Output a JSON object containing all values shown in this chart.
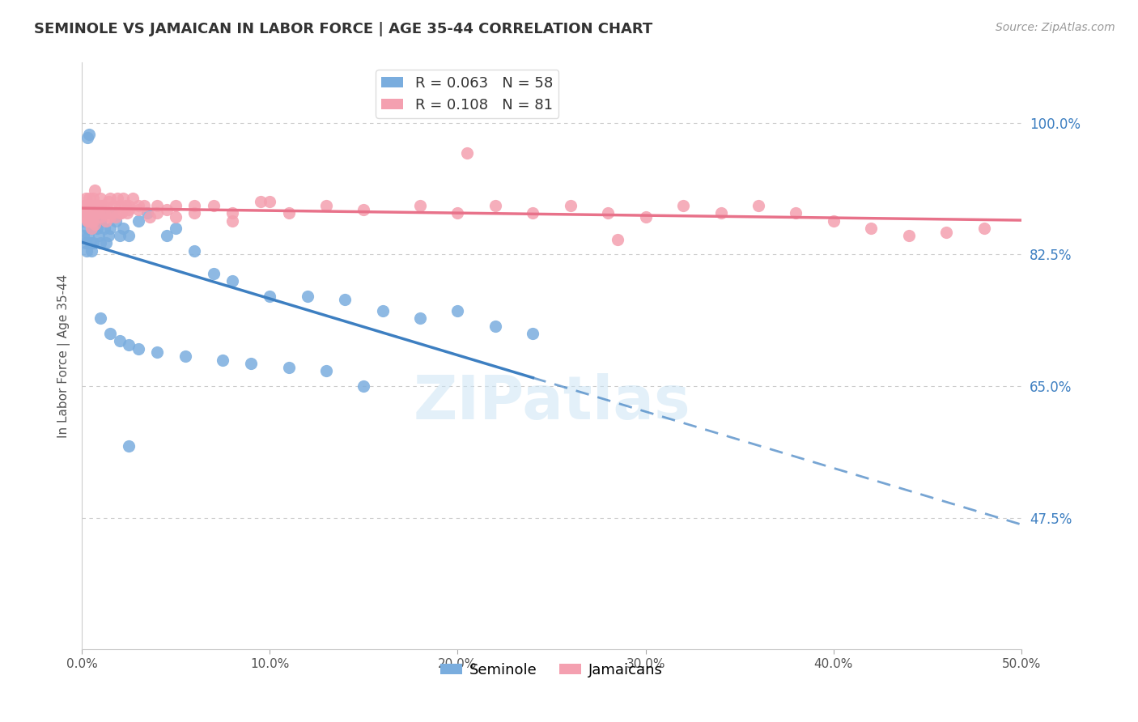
{
  "title": "SEMINOLE VS JAMAICAN IN LABOR FORCE | AGE 35-44 CORRELATION CHART",
  "source": "Source: ZipAtlas.com",
  "ylabel": "In Labor Force | Age 35-44",
  "xlim": [
    0.0,
    50.0
  ],
  "ylim": [
    30.0,
    108.0
  ],
  "yticks": [
    47.5,
    65.0,
    82.5,
    100.0
  ],
  "xticks": [
    0.0,
    10.0,
    20.0,
    30.0,
    40.0,
    50.0
  ],
  "seminole_R": 0.063,
  "seminole_N": 58,
  "jamaican_R": 0.108,
  "jamaican_N": 81,
  "seminole_color": "#7aadde",
  "jamaican_color": "#f4a0b0",
  "seminole_line_color": "#3d7fc1",
  "jamaican_line_color": "#e8728a",
  "background_color": "#ffffff",
  "grid_color": "#cccccc",
  "watermark": "ZIPatlas",
  "legend_label_seminole": "Seminole",
  "legend_label_jamaican": "Jamaicans"
}
